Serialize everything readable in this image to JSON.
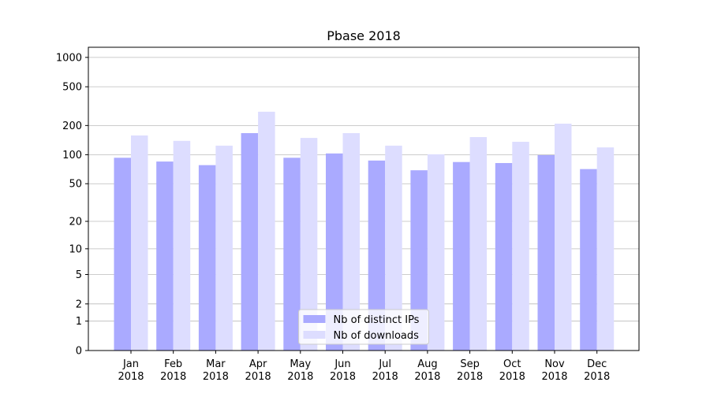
{
  "chart_data": {
    "type": "bar",
    "title": "Pbase 2018",
    "categories": [
      "Jan\n2018",
      "Feb\n2018",
      "Mar\n2018",
      "Apr\n2018",
      "May\n2018",
      "Jun\n2018",
      "Jul\n2018",
      "Aug\n2018",
      "Sep\n2018",
      "Oct\n2018",
      "Nov\n2018",
      "Dec\n2018"
    ],
    "series": [
      {
        "name": "Nb of distinct IPs",
        "color": "#aaaaff",
        "values": [
          93,
          85,
          78,
          167,
          93,
          103,
          87,
          69,
          84,
          82,
          99,
          71
        ]
      },
      {
        "name": "Nb of downloads",
        "color": "#ddddff",
        "values": [
          158,
          139,
          124,
          277,
          149,
          167,
          124,
          101,
          152,
          136,
          209,
          119
        ]
      }
    ],
    "yscale": "log1p",
    "ylim": [
      0,
      1270
    ],
    "yticks": [
      0,
      1,
      2,
      5,
      10,
      20,
      50,
      100,
      200,
      500,
      1000
    ],
    "grid": true,
    "legend": "lower center"
  }
}
